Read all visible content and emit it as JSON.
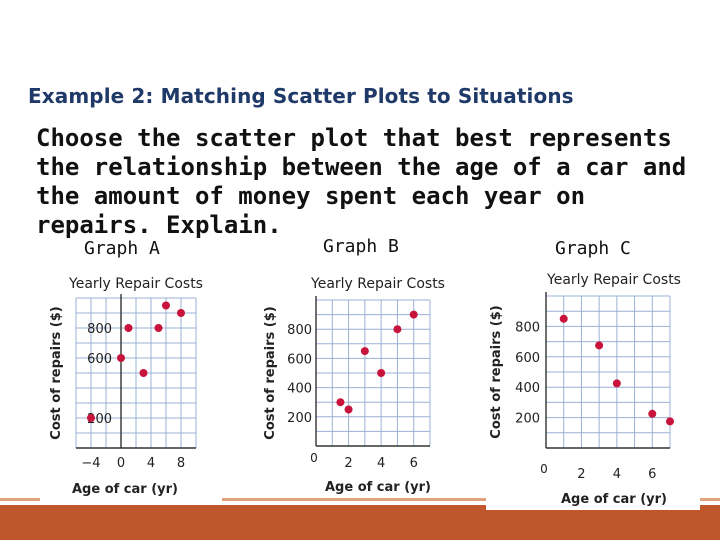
{
  "slide": {
    "title": "Example 2: Matching Scatter Plots to Situations",
    "question": "Choose the scatter plot that best represents the relationship between the age of a car and the amount of money spent each year on repairs. Explain."
  },
  "colors": {
    "title": "#1f3a68",
    "point": "#c8143c",
    "grid": "#9bb0d6",
    "footer": "#c0562b"
  },
  "chart_data": [
    {
      "type": "scatter",
      "label": "Graph A",
      "title": "Yearly Repair Costs",
      "xlabel": "Age of car (yr)",
      "ylabel": "Cost of repairs ($)",
      "xticks": [
        -4,
        0,
        4,
        8
      ],
      "yticks": [
        200,
        400,
        600,
        800
      ],
      "ytick_labels": [
        200,
        600,
        800
      ],
      "xlim": [
        -6,
        10
      ],
      "ylim": [
        0,
        1000
      ],
      "grid": true,
      "points": [
        {
          "x": -4,
          "y": 200
        },
        {
          "x": 0,
          "y": 600
        },
        {
          "x": 1,
          "y": 800
        },
        {
          "x": 3,
          "y": 500
        },
        {
          "x": 5,
          "y": 800
        },
        {
          "x": 6,
          "y": 950
        },
        {
          "x": 8,
          "y": 900
        }
      ]
    },
    {
      "type": "scatter",
      "label": "Graph B",
      "title": "Yearly Repair Costs",
      "xlabel": "Age of car (yr)",
      "ylabel": "Cost of repairs ($)",
      "xticks": [
        2,
        4,
        6
      ],
      "yticks": [
        200,
        400,
        600,
        800
      ],
      "xlim": [
        0,
        7
      ],
      "ylim": [
        0,
        1000
      ],
      "grid": true,
      "points": [
        {
          "x": 1.5,
          "y": 300
        },
        {
          "x": 2,
          "y": 250
        },
        {
          "x": 3,
          "y": 650
        },
        {
          "x": 4,
          "y": 500
        },
        {
          "x": 5,
          "y": 800
        },
        {
          "x": 6,
          "y": 900
        }
      ]
    },
    {
      "type": "scatter",
      "label": "Graph C",
      "title": "Yearly Repair Costs",
      "xlabel": "Age of car (yr)",
      "ylabel": "Cost of repairs ($)",
      "xticks": [
        2,
        4,
        6
      ],
      "yticks": [
        200,
        400,
        600,
        800
      ],
      "xlim": [
        0,
        7
      ],
      "ylim": [
        0,
        1000
      ],
      "grid": true,
      "points": [
        {
          "x": 1,
          "y": 850
        },
        {
          "x": 3,
          "y": 675
        },
        {
          "x": 4,
          "y": 425
        },
        {
          "x": 6,
          "y": 225
        },
        {
          "x": 7,
          "y": 175
        }
      ]
    }
  ]
}
